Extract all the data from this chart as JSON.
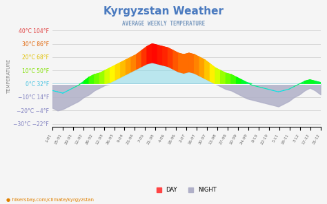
{
  "title": "Kyrgyzstan Weather",
  "subtitle": "AVERAGE WEEKLY TEMPERATURE",
  "ylabel": "TEMPERATURE",
  "website": "hikersbay.com/climate/kyrgyzstan",
  "yticks": [
    -30,
    -20,
    -10,
    0,
    10,
    20,
    30,
    40
  ],
  "ytick_labels": [
    "−30°C −22°F",
    "−20°C −4°F",
    "−10°C 14°F",
    "0°C 32°F",
    "10°C 50°F",
    "20°C 68°F",
    "30°C 86°F",
    "40°C 104°F"
  ],
  "ytick_colors": [
    "#8080c0",
    "#8080c0",
    "#8080c0",
    "#40c0e0",
    "#80e000",
    "#e0c000",
    "#e06000",
    "#e04040"
  ],
  "ylim": [
    -32,
    43
  ],
  "xlim": [
    0,
    52
  ],
  "xtick_labels": [
    "1-01",
    "15-01",
    "29-01",
    "12-02",
    "26-02",
    "12-03",
    "26-03",
    "9-04",
    "23-04",
    "7-05",
    "21-05",
    "4-06",
    "18-06",
    "2-07",
    "16-07",
    "30-07",
    "13-08",
    "27-08",
    "10-09",
    "24-09",
    "8-10",
    "22-10",
    "5-11",
    "19-11",
    "3-12",
    "17-12",
    "31-12"
  ],
  "background_color": "#f5f5f5",
  "day_values": [
    -5,
    -6,
    -7,
    -5,
    -3,
    -1,
    2,
    5,
    7,
    8,
    10,
    12,
    14,
    16,
    18,
    20,
    22,
    25,
    28,
    30,
    29,
    28,
    27,
    25,
    23,
    22,
    23,
    22,
    20,
    18,
    15,
    12,
    10,
    8,
    7,
    5,
    3,
    1,
    -1,
    -2,
    -3,
    -4,
    -5,
    -6,
    -5,
    -4,
    -2,
    0,
    2,
    3,
    2,
    1
  ],
  "night_values": [
    -18,
    -20,
    -19,
    -17,
    -15,
    -13,
    -10,
    -8,
    -5,
    -3,
    -1,
    1,
    3,
    5,
    7,
    9,
    11,
    13,
    15,
    16,
    15,
    14,
    13,
    11,
    9,
    8,
    9,
    8,
    6,
    4,
    2,
    0,
    -2,
    -4,
    -5,
    -7,
    -9,
    -11,
    -12,
    -13,
    -14,
    -15,
    -16,
    -17,
    -15,
    -13,
    -10,
    -8,
    -5,
    -3,
    -5,
    -8
  ],
  "legend_dot_color": "#ff4444",
  "legend_night_color": "#b0b0c8"
}
